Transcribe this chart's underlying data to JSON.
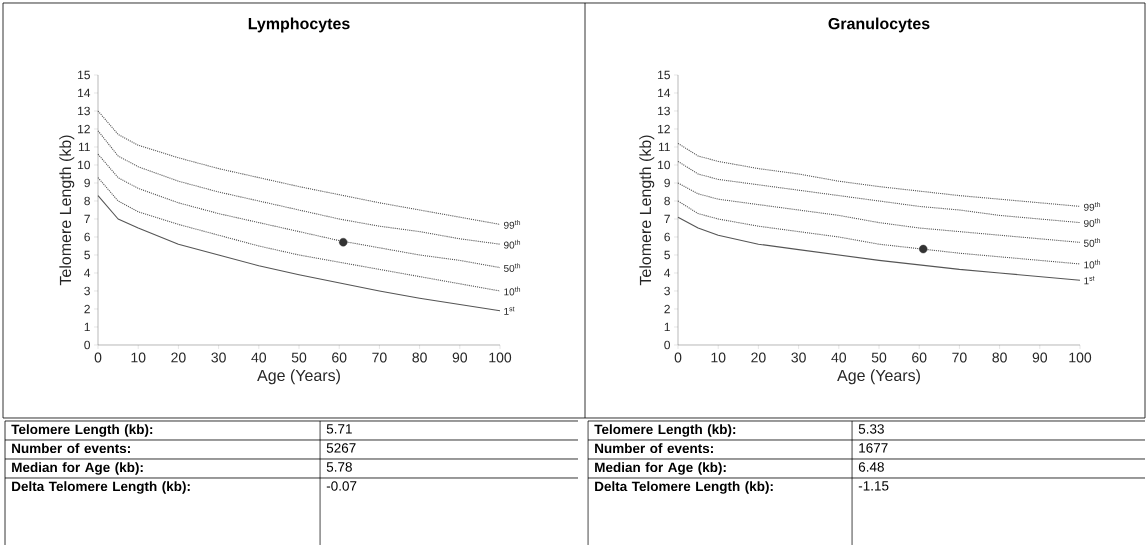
{
  "chart_data": [
    {
      "type": "line",
      "title": "Lymphocytes",
      "xlabel": "Age (Years)",
      "ylabel": "Telomere Length (kb)",
      "xlim": [
        0,
        100
      ],
      "ylim": [
        0,
        15
      ],
      "xticks": [
        0,
        10,
        20,
        30,
        40,
        50,
        60,
        70,
        80,
        90,
        100
      ],
      "yticks": [
        0,
        1,
        2,
        3,
        4,
        5,
        6,
        7,
        8,
        9,
        10,
        11,
        12,
        13,
        14,
        15
      ],
      "series": [
        {
          "name": "99$^{th}$",
          "color": "#555555",
          "line_style": "dotted",
          "x": [
            0,
            5,
            10,
            20,
            30,
            40,
            50,
            60,
            70,
            80,
            90,
            100
          ],
          "values": [
            13.0,
            11.7,
            11.1,
            10.4,
            9.8,
            9.3,
            8.8,
            8.35,
            7.9,
            7.5,
            7.1,
            6.7
          ]
        },
        {
          "name": "90$^{th}$",
          "color": "#555555",
          "line_style": "dotted",
          "x": [
            0,
            5,
            10,
            20,
            30,
            40,
            50,
            60,
            70,
            80,
            90,
            100
          ],
          "values": [
            11.9,
            10.5,
            9.9,
            9.1,
            8.5,
            8.0,
            7.5,
            7.0,
            6.6,
            6.3,
            5.9,
            5.6
          ]
        },
        {
          "name": "50$^{th}$",
          "color": "#555555",
          "line_style": "dotted",
          "x": [
            0,
            5,
            10,
            20,
            30,
            40,
            50,
            60,
            70,
            80,
            90,
            100
          ],
          "values": [
            10.6,
            9.3,
            8.7,
            7.9,
            7.3,
            6.8,
            6.3,
            5.8,
            5.4,
            5.0,
            4.7,
            4.3
          ]
        },
        {
          "name": "10$^{th}$",
          "color": "#555555",
          "line_style": "dotted",
          "x": [
            0,
            5,
            10,
            20,
            30,
            40,
            50,
            60,
            70,
            80,
            90,
            100
          ],
          "values": [
            9.3,
            8.0,
            7.4,
            6.7,
            6.1,
            5.5,
            5.0,
            4.6,
            4.2,
            3.8,
            3.4,
            3.0
          ]
        },
        {
          "name": "1$^{st}$",
          "color": "#555555",
          "line_style": "solid",
          "x": [
            0,
            5,
            10,
            20,
            30,
            40,
            50,
            60,
            70,
            80,
            90,
            100
          ],
          "values": [
            8.3,
            7.0,
            6.5,
            5.6,
            5.0,
            4.4,
            3.9,
            3.45,
            3.0,
            2.6,
            2.25,
            1.9
          ]
        },
        {
          "type": "scatter",
          "color": "#333333",
          "x": [
            61
          ],
          "values": [
            5.71
          ]
        }
      ],
      "annotations": [
        "Telomere Length (kb):",
        "5.71",
        "Number of events:",
        "5267",
        "Median for Age (kb):",
        "5.78",
        "Delta Telomere Length (kb):",
        "-0.07"
      ]
    },
    {
      "type": "line",
      "title": "Granulocytes",
      "xlabel": "Age (Years)",
      "ylabel": "Telomere Length (kb)",
      "xlim": [
        0,
        100
      ],
      "ylim": [
        0,
        15
      ],
      "xticks": [
        0,
        10,
        20,
        30,
        40,
        50,
        60,
        70,
        80,
        90,
        100
      ],
      "yticks": [
        0,
        1,
        2,
        3,
        4,
        5,
        6,
        7,
        8,
        9,
        10,
        11,
        12,
        13,
        14,
        15
      ],
      "series": [
        {
          "name": "99$^{th}$",
          "color": "#555555",
          "line_style": "dotted",
          "x": [
            0,
            5,
            10,
            20,
            30,
            40,
            50,
            60,
            70,
            80,
            90,
            100
          ],
          "values": [
            11.2,
            10.5,
            10.2,
            9.8,
            9.5,
            9.1,
            8.8,
            8.55,
            8.3,
            8.1,
            7.9,
            7.7
          ]
        },
        {
          "name": "90$^{th}$",
          "color": "#555555",
          "line_style": "dotted",
          "x": [
            0,
            5,
            10,
            20,
            30,
            40,
            50,
            60,
            70,
            80,
            90,
            100
          ],
          "values": [
            10.2,
            9.5,
            9.2,
            8.9,
            8.6,
            8.3,
            8.0,
            7.7,
            7.5,
            7.2,
            7.0,
            6.8
          ]
        },
        {
          "name": "50$^{th}$",
          "color": "#555555",
          "line_style": "dotted",
          "x": [
            0,
            5,
            10,
            20,
            30,
            40,
            50,
            60,
            70,
            80,
            90,
            100
          ],
          "values": [
            9.0,
            8.4,
            8.1,
            7.8,
            7.5,
            7.2,
            6.8,
            6.5,
            6.3,
            6.1,
            5.9,
            5.7
          ]
        },
        {
          "name": "10$^{th}$",
          "color": "#555555",
          "line_style": "dotted",
          "x": [
            0,
            5,
            10,
            20,
            30,
            40,
            50,
            60,
            70,
            80,
            90,
            100
          ],
          "values": [
            8.0,
            7.3,
            7.0,
            6.6,
            6.3,
            6.0,
            5.6,
            5.35,
            5.1,
            4.9,
            4.7,
            4.5
          ]
        },
        {
          "name": "1$^{st}$",
          "color": "#555555",
          "line_style": "solid",
          "x": [
            0,
            5,
            10,
            20,
            30,
            40,
            50,
            60,
            70,
            80,
            90,
            100
          ],
          "values": [
            7.1,
            6.5,
            6.1,
            5.6,
            5.3,
            5.0,
            4.7,
            4.45,
            4.2,
            4.0,
            3.8,
            3.6
          ]
        },
        {
          "type": "scatter",
          "color": "#333333",
          "x": [
            61
          ],
          "values": [
            5.33
          ]
        }
      ],
      "annotations": [
        "Telomere Length (kb):",
        "5.33",
        "Number of events:",
        "1677",
        "Median for Age (kb):",
        "6.48",
        "Delta Telomere Length (kb):",
        "-1.15"
      ]
    }
  ]
}
